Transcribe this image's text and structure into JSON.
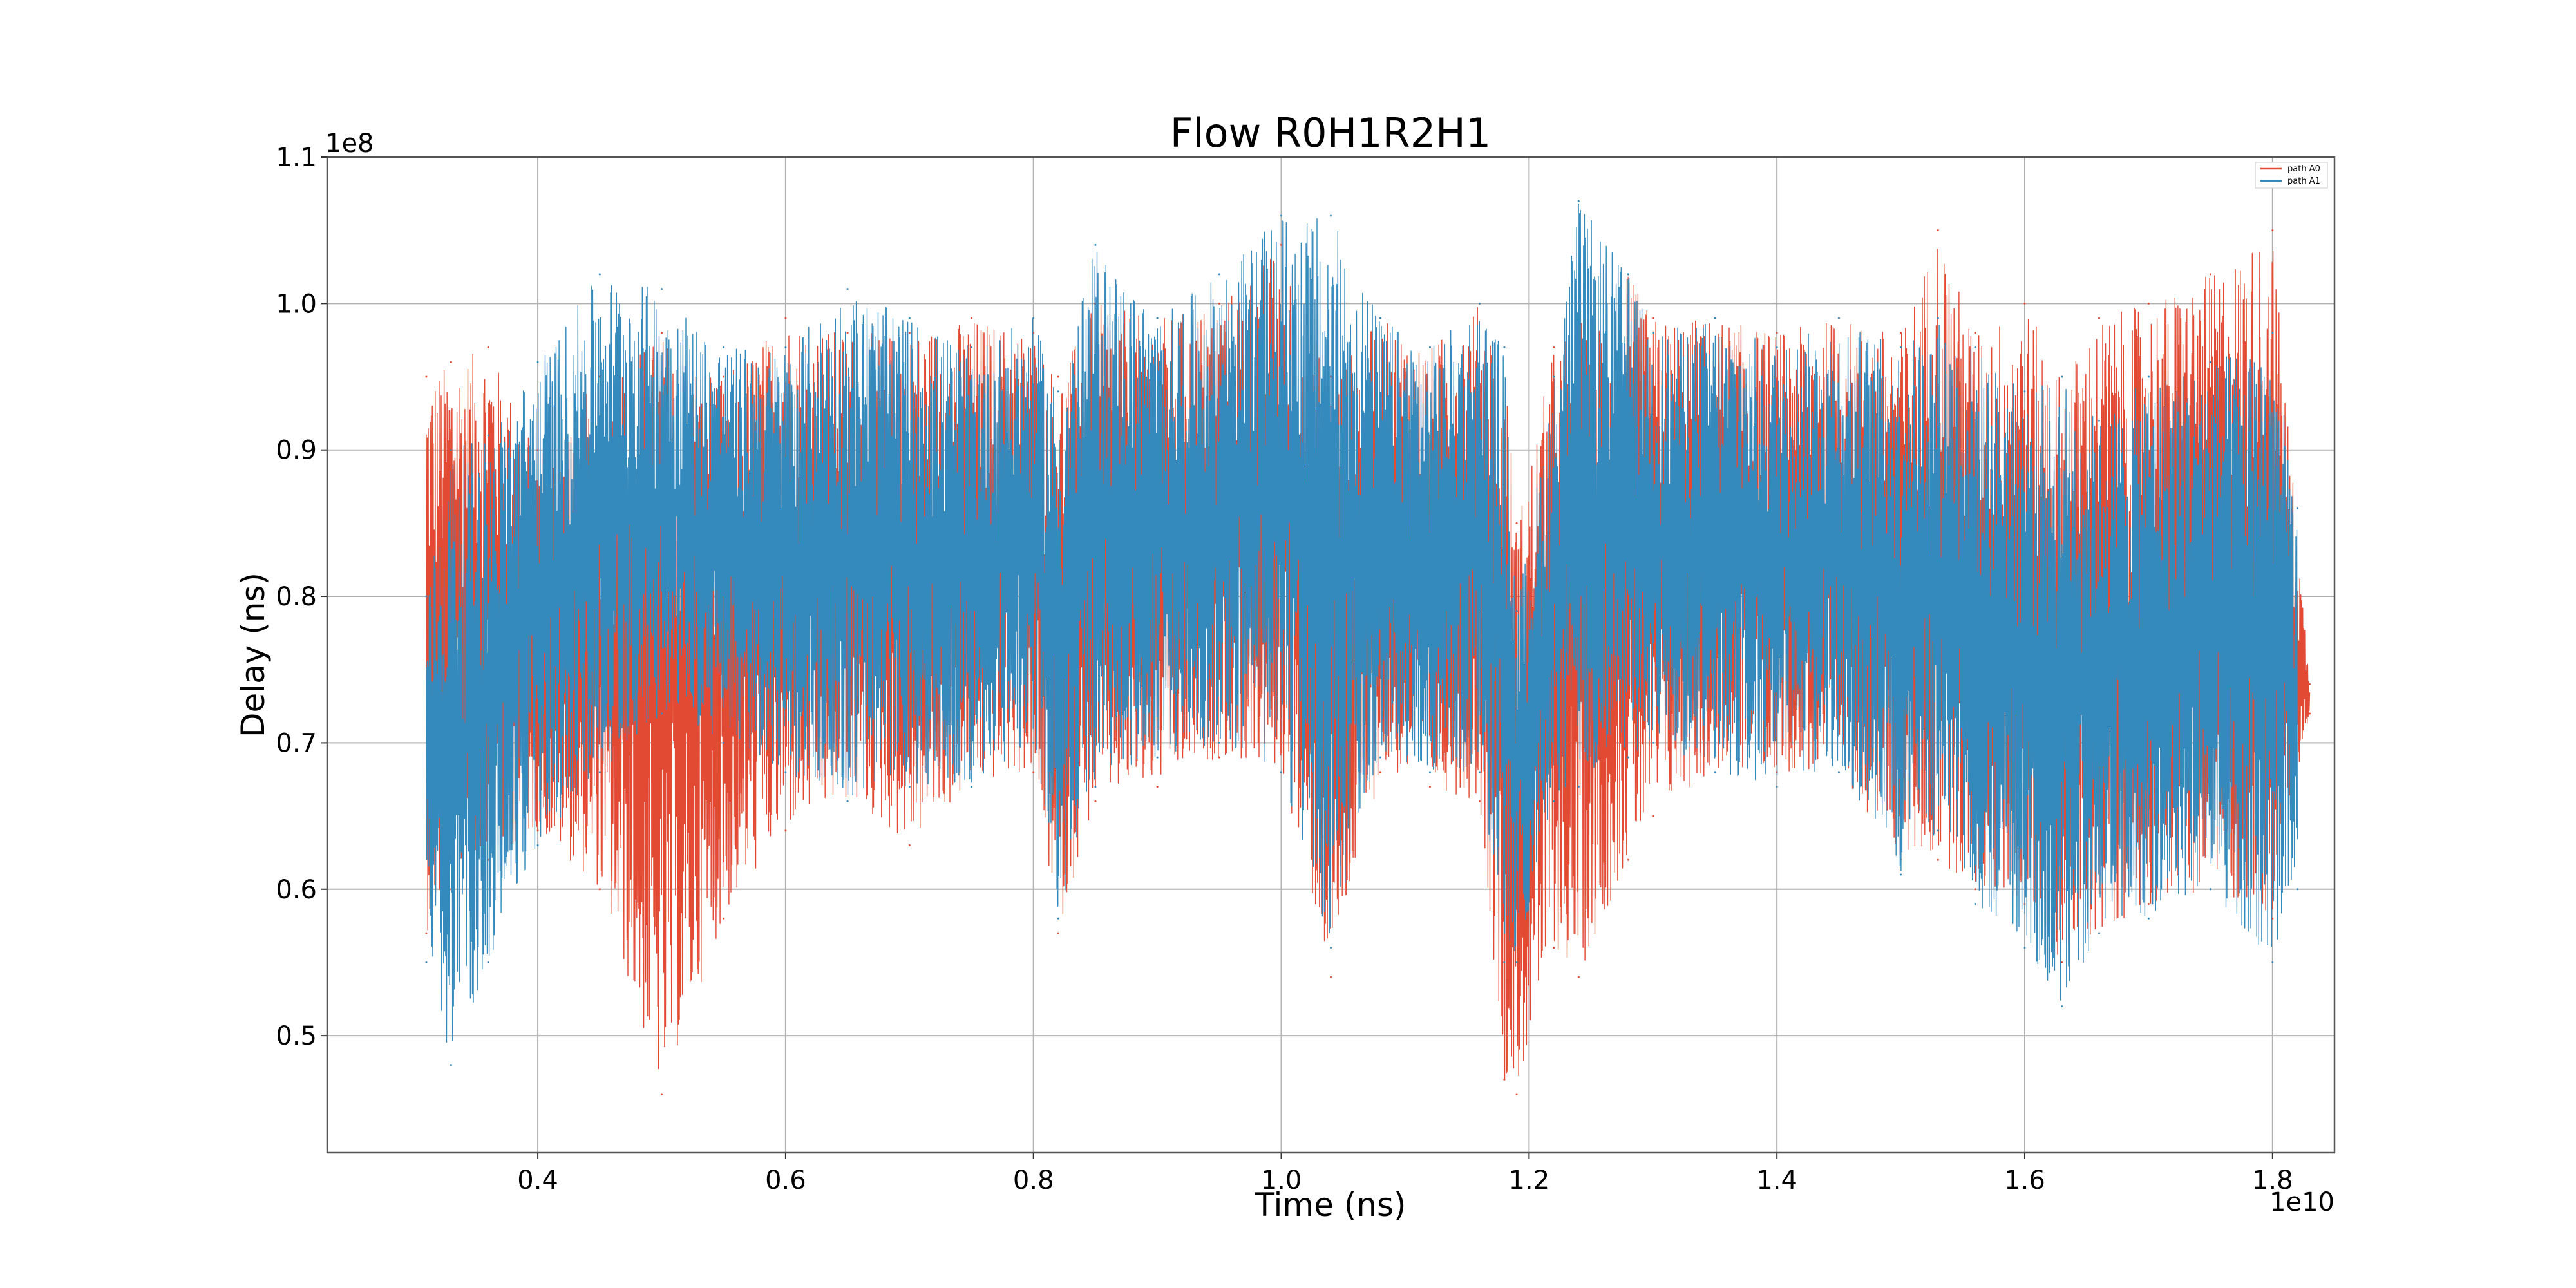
{
  "chart_data": {
    "type": "line",
    "title": "Flow R0H1R2H1",
    "xlabel": "Time (ns)",
    "ylabel": "Delay (ns)",
    "x_scale_label": "1e10",
    "y_scale_label": "1e8",
    "xlim": [
      0.23,
      1.85
    ],
    "ylim": [
      0.42,
      1.1
    ],
    "x_ticks": [
      0.4,
      0.6,
      0.8,
      1.0,
      1.2,
      1.4,
      1.6,
      1.8
    ],
    "x_tick_labels": [
      "0.4",
      "0.6",
      "0.8",
      "1.0",
      "1.2",
      "1.4",
      "1.6",
      "1.8"
    ],
    "y_ticks": [
      0.5,
      0.6,
      0.7,
      0.8,
      0.9,
      1.0,
      1.1
    ],
    "y_tick_labels": [
      "0.5",
      "0.6",
      "0.7",
      "0.8",
      "0.9",
      "1.0",
      "1.1"
    ],
    "grid": true,
    "legend_position": "top-right",
    "series": [
      {
        "name": "path A0",
        "color": "#e24a33",
        "x": [
          0.31,
          0.33,
          0.36,
          0.4,
          0.45,
          0.5,
          0.55,
          0.6,
          0.65,
          0.7,
          0.75,
          0.8,
          0.82,
          0.85,
          0.9,
          0.95,
          1.0,
          1.04,
          1.08,
          1.12,
          1.16,
          1.18,
          1.19,
          1.22,
          1.24,
          1.28,
          1.3,
          1.35,
          1.4,
          1.45,
          1.5,
          1.53,
          1.56,
          1.6,
          1.63,
          1.66,
          1.7,
          1.75,
          1.8,
          1.83
        ],
        "ymin": [
          0.57,
          0.6,
          0.62,
          0.64,
          0.6,
          0.46,
          0.58,
          0.64,
          0.66,
          0.63,
          0.67,
          0.68,
          0.57,
          0.66,
          0.67,
          0.69,
          0.68,
          0.54,
          0.68,
          0.67,
          0.66,
          0.47,
          0.46,
          0.56,
          0.54,
          0.62,
          0.65,
          0.68,
          0.68,
          0.68,
          0.62,
          0.62,
          0.6,
          0.59,
          0.55,
          0.57,
          0.59,
          0.6,
          0.58,
          0.72
        ],
        "ymax": [
          0.95,
          0.96,
          0.97,
          0.9,
          0.95,
          0.98,
          0.95,
          0.99,
          0.98,
          0.98,
          0.99,
          0.98,
          0.95,
          1.0,
          0.99,
          1.0,
          1.04,
          0.95,
          0.99,
          0.97,
          1.0,
          0.97,
          0.85,
          0.97,
          0.99,
          1.02,
          0.99,
          0.99,
          0.98,
          0.99,
          0.98,
          1.05,
          0.98,
          1.0,
          0.95,
          0.99,
          1.0,
          1.02,
          1.05,
          0.74
        ]
      },
      {
        "name": "path A1",
        "color": "#348abd",
        "x": [
          0.31,
          0.33,
          0.36,
          0.4,
          0.45,
          0.5,
          0.55,
          0.6,
          0.65,
          0.7,
          0.75,
          0.8,
          0.82,
          0.85,
          0.9,
          0.95,
          1.0,
          1.04,
          1.08,
          1.12,
          1.16,
          1.18,
          1.19,
          1.22,
          1.24,
          1.28,
          1.3,
          1.35,
          1.4,
          1.45,
          1.5,
          1.53,
          1.56,
          1.6,
          1.63,
          1.66,
          1.7,
          1.75,
          1.8,
          1.82
        ],
        "ymin": [
          0.55,
          0.48,
          0.55,
          0.63,
          0.68,
          0.72,
          0.7,
          0.68,
          0.66,
          0.67,
          0.67,
          0.7,
          0.58,
          0.67,
          0.69,
          0.7,
          0.68,
          0.56,
          0.69,
          0.68,
          0.68,
          0.55,
          0.55,
          0.66,
          0.67,
          0.69,
          0.7,
          0.68,
          0.67,
          0.68,
          0.61,
          0.64,
          0.59,
          0.56,
          0.52,
          0.57,
          0.58,
          0.6,
          0.55,
          0.6
        ],
        "ymax": [
          0.8,
          0.9,
          0.91,
          0.96,
          1.02,
          1.01,
          0.97,
          0.97,
          1.01,
          0.99,
          0.97,
          0.99,
          0.94,
          1.04,
          0.99,
          1.02,
          1.06,
          1.06,
          0.99,
          0.97,
          1.0,
          0.97,
          0.79,
          0.95,
          1.07,
          1.02,
          0.98,
          0.99,
          0.97,
          0.99,
          0.97,
          0.99,
          0.97,
          0.94,
          0.95,
          0.92,
          0.95,
          0.96,
          0.98,
          0.86
        ]
      }
    ]
  }
}
